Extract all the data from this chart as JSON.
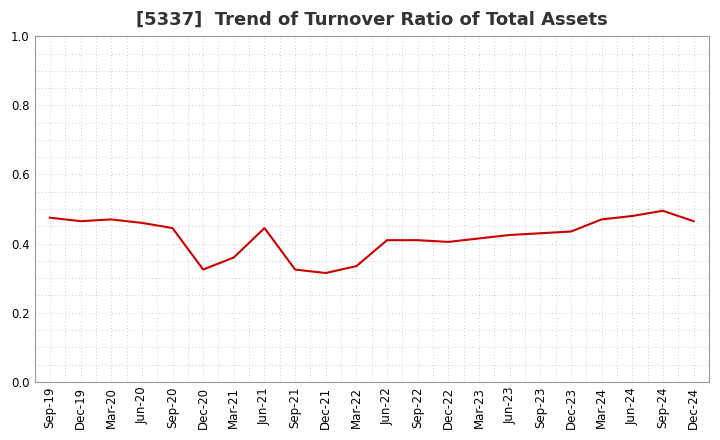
{
  "title": "[5337]  Trend of Turnover Ratio of Total Assets",
  "x_labels": [
    "Sep-19",
    "Dec-19",
    "Mar-20",
    "Jun-20",
    "Sep-20",
    "Dec-20",
    "Mar-21",
    "Jun-21",
    "Sep-21",
    "Dec-21",
    "Mar-22",
    "Jun-22",
    "Sep-22",
    "Dec-22",
    "Mar-23",
    "Jun-23",
    "Sep-23",
    "Dec-23",
    "Mar-24",
    "Jun-24",
    "Sep-24",
    "Dec-24"
  ],
  "y_values": [
    0.475,
    0.465,
    0.47,
    0.46,
    0.445,
    0.325,
    0.36,
    0.445,
    0.325,
    0.315,
    0.335,
    0.41,
    0.41,
    0.405,
    0.415,
    0.425,
    0.43,
    0.435,
    0.47,
    0.48,
    0.495,
    0.465
  ],
  "line_color": "#cc0000",
  "line_width": 1.5,
  "ylim": [
    0.0,
    1.0
  ],
  "yticks": [
    0.0,
    0.2,
    0.4,
    0.6,
    0.8,
    1.0
  ],
  "ytick_labels": [
    "0.0",
    "0.2",
    "0.4",
    "0.6",
    "0.8",
    "1.0"
  ],
  "grid_color": "#bbbbbb",
  "background_color": "#ffffff",
  "title_fontsize": 13,
  "tick_fontsize": 8.5,
  "title_color": "#333333",
  "title_loc": "center"
}
